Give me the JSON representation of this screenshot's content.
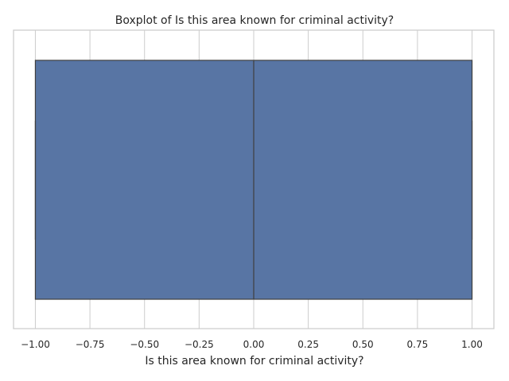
{
  "chart_data": {
    "type": "boxplot",
    "title": "Boxplot of Is this area known for criminal activity?",
    "xlabel": "Is this area known for criminal activity?",
    "ylabel": "",
    "xlim": [
      -1.1,
      1.1
    ],
    "xticks": [
      -1.0,
      -0.75,
      -0.5,
      -0.25,
      0.0,
      0.25,
      0.5,
      0.75,
      1.0
    ],
    "xtick_labels": [
      "−1.00",
      "−0.75",
      "−0.50",
      "−0.25",
      "0.00",
      "0.25",
      "0.50",
      "0.75",
      "1.00"
    ],
    "grid": true,
    "orientation": "horizontal",
    "box": {
      "whisker_low": -1.0,
      "q1": -1.0,
      "median": 0.0,
      "q3": 1.0,
      "whisker_high": 1.0
    },
    "colors": {
      "box_fill": "#5875a4",
      "box_edge": "#3f3f3f",
      "grid": "#cccccc",
      "frame": "#cccccc",
      "text": "#262626"
    }
  }
}
